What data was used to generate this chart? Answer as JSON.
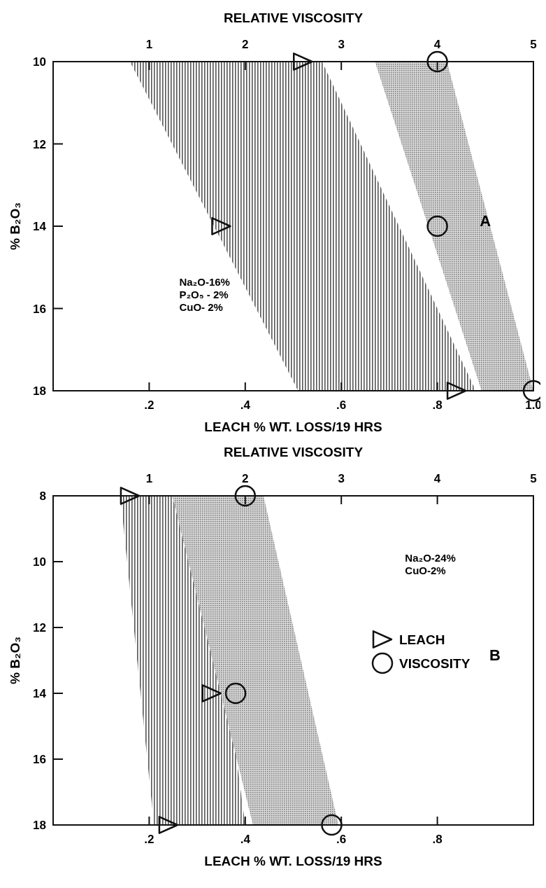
{
  "chart_data": [
    {
      "type": "scatter",
      "xlabel": "LEACH % WT. LOSS/19 HRS",
      "x2label": "RELATIVE VISCOSITY",
      "ylabel": "% B₂O₃",
      "xlim": [
        0,
        1.0
      ],
      "xticks": [
        {
          "value": 0.2,
          "label": ".2"
        },
        {
          "value": 0.4,
          "label": ".4"
        },
        {
          "value": 0.6,
          "label": ".6"
        },
        {
          "value": 0.8,
          "label": ".8"
        },
        {
          "value": 1.0,
          "label": "1.0"
        }
      ],
      "x2lim": [
        0,
        5
      ],
      "x2ticks": [
        1,
        2,
        3,
        4,
        5
      ],
      "ylim": [
        18,
        10
      ],
      "yticks": [
        10,
        12,
        14,
        16,
        18
      ],
      "grid": false,
      "legend": false,
      "annotations": [
        "A",
        "Na₂O-16%",
        "P₂O₅ - 2%",
        "CuO- 2%"
      ],
      "series": [
        {
          "type": "area",
          "color": "#555555",
          "x": [
            0.16,
            0.56,
            0.88,
            0.51
          ],
          "values": [
            10,
            10,
            18,
            18
          ]
        },
        {
          "type": "area",
          "axis": "x2",
          "color": "#777777",
          "x": [
            3.35,
            4.1,
            5.0,
            4.46
          ],
          "values": [
            10,
            10,
            18,
            18
          ]
        },
        {
          "type": "scatter",
          "marker": "triangle",
          "color": "#111111",
          "x": [
            0.52,
            0.35,
            0.84
          ],
          "values": [
            10,
            14,
            18
          ]
        },
        {
          "type": "scatter",
          "axis": "x2",
          "marker": "circle",
          "color": "#111111",
          "x": [
            4.0,
            4.0,
            5.0
          ],
          "values": [
            10,
            14,
            18
          ]
        }
      ]
    },
    {
      "type": "scatter",
      "xlabel": "LEACH % WT. LOSS/19 HRS",
      "x2label": "RELATIVE VISCOSITY",
      "ylabel": "% B₂O₃",
      "xlim": [
        0,
        1.0
      ],
      "xticks": [
        {
          "value": 0.2,
          "label": ".2"
        },
        {
          "value": 0.4,
          "label": ".4"
        },
        {
          "value": 0.6,
          "label": ".6"
        },
        {
          "value": 0.8,
          "label": ".8"
        }
      ],
      "x2lim": [
        0,
        5
      ],
      "x2ticks": [
        1,
        2,
        3,
        4,
        5
      ],
      "ylim": [
        18,
        8
      ],
      "yticks": [
        8,
        10,
        12,
        14,
        16,
        18
      ],
      "grid": false,
      "legend": "right",
      "annotations": [
        "B",
        "Na₂O-24%",
        "CuO-2%"
      ],
      "series": [
        {
          "type": "area",
          "color": "#555555",
          "x": [
            0.14,
            0.31,
            0.4,
            0.21
          ],
          "values": [
            8,
            8,
            18,
            18
          ]
        },
        {
          "type": "area",
          "axis": "x2",
          "color": "#777777",
          "x": [
            1.24,
            2.19,
            2.97,
            2.08
          ],
          "values": [
            8,
            8,
            18,
            18
          ]
        },
        {
          "type": "scatter",
          "name": "LEACH",
          "marker": "triangle",
          "color": "#111111",
          "x": [
            0.16,
            0.33,
            0.24
          ],
          "values": [
            8,
            14,
            18
          ]
        },
        {
          "type": "scatter",
          "axis": "x2",
          "name": "VISCOSITY",
          "marker": "circle",
          "color": "#111111",
          "x": [
            2.0,
            1.9,
            2.9
          ],
          "values": [
            8,
            14,
            18
          ]
        }
      ]
    }
  ]
}
